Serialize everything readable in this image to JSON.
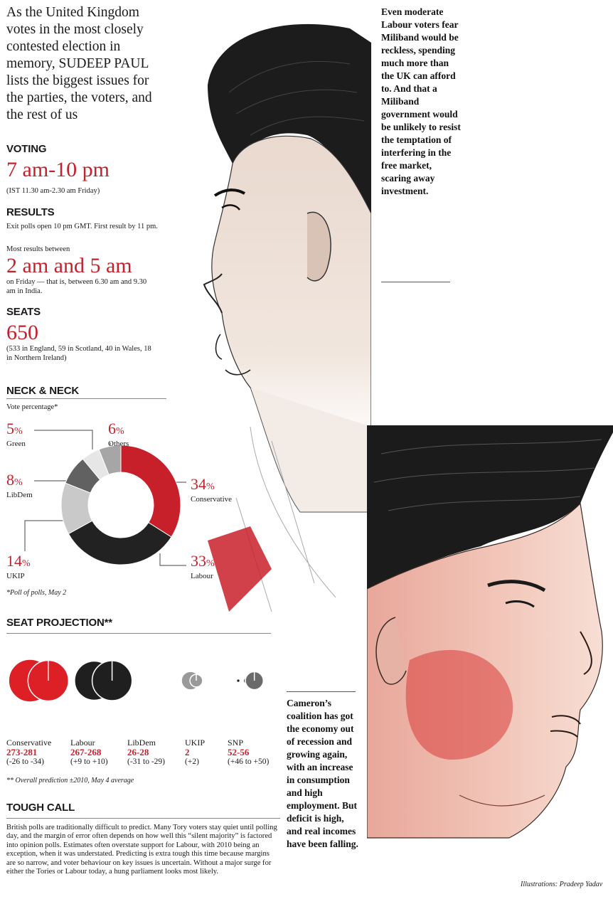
{
  "intro": "As the United Kingdom votes in the most closely contested election in memory, SUDEEP PAUL lists the biggest issues for the parties, the voters, and the rest of us",
  "voting": {
    "heading": "VOTING",
    "time": "7 am-10 pm",
    "note": "(IST 11.30 am-2.30 am Friday)"
  },
  "results": {
    "heading": "RESULTS",
    "exit_polls": "Exit polls open 10 pm GMT. First result by 11 pm.",
    "most_between": "Most results between",
    "time": "2 am and 5 am",
    "note": "on Friday — that is, between 6.30 am and 9.30 am in India."
  },
  "seats": {
    "heading": "SEATS",
    "total": "650",
    "breakdown": "(533 in England, 59 in Scotland, 40 in Wales, 18 in Northern Ireland)"
  },
  "neck": {
    "heading": "NECK & NECK",
    "subtitle": "Vote percentage*",
    "footnote": "*Poll of polls, May 2",
    "slices": [
      {
        "label": "Green",
        "value": "5",
        "color": "#e6e6e6"
      },
      {
        "label": "Others",
        "value": "6",
        "color": "#a6a6a6"
      },
      {
        "label": "Conservative",
        "value": "34",
        "color": "#c8202a"
      },
      {
        "label": "Labour",
        "value": "33",
        "color": "#222222"
      },
      {
        "label": "UKIP",
        "value": "14",
        "color": "#c9c9c9"
      },
      {
        "label": "LibDem",
        "value": "8",
        "color": "#616161"
      }
    ],
    "percent_sign": "%"
  },
  "chart_data": {
    "type": "pie",
    "title": "NECK & NECK",
    "subtitle": "Vote percentage*",
    "categories": [
      "Conservative",
      "Labour",
      "UKIP",
      "LibDem",
      "Green",
      "Others"
    ],
    "values": [
      34,
      33,
      14,
      8,
      5,
      6
    ],
    "unit": "%",
    "colors": [
      "#c8202a",
      "#222222",
      "#c9c9c9",
      "#616161",
      "#e6e6e6",
      "#a6a6a6"
    ],
    "legend_placement": "around"
  },
  "seat_projection": {
    "heading": "SEAT PROJECTION**",
    "footnote": "** Overall prediction ±2010, May 4 average",
    "parties": [
      {
        "name": "Conservative",
        "range": "273-281",
        "change": "(-26 to -34)",
        "color": "#dd1f26",
        "seats_2010": 307,
        "seats_proj": 277
      },
      {
        "name": "Labour",
        "range": "267-268",
        "change": "(+9 to +10)",
        "color": "#1f1f1f",
        "seats_2010": 258,
        "seats_proj": 268
      },
      {
        "name": "LibDem",
        "range": "26-28",
        "change": "(-31 to -29)",
        "color": "#9a9a9a",
        "seats_2010": 57,
        "seats_proj": 27
      },
      {
        "name": "UKIP",
        "range": "2",
        "change": "(+2)",
        "color": "#1f1f1f",
        "seats_2010": 0,
        "seats_proj": 2
      },
      {
        "name": "SNP",
        "range": "52-56",
        "change": "(+46 to +50)",
        "color": "#6a6a6a",
        "seats_2010": 6,
        "seats_proj": 54
      }
    ]
  },
  "tough_call": {
    "heading": "TOUGH CALL",
    "body": "British polls are traditionally difficult to predict. Many Tory voters stay quiet until polling day, and the margin of error often depends on how well this “silent majority” is factored into opinion polls. Estimates often overstate support for Labour, with 2010 being an exception, when it was understated. Predicting is extra tough this time because margins are so narrow, and voter behaviour on key issues is uncertain. Without a major surge for either the Tories or Labour today, a hung parliament looks most likely."
  },
  "quote_miliband": "Even moderate Labour voters fear Miliband would be reckless, spending much more than the UK can afford to. And that a Miliband government would be unlikely to resist the temptation of interfering in the free market, scaring away investment.",
  "quote_cameron": "Cameron’s coalition has got the economy out of recession and growing again, with an increase in consumption and high employment. But deficit is high, and real incomes have been falling.",
  "credit": "Illustrations: Pradeep Yadav"
}
